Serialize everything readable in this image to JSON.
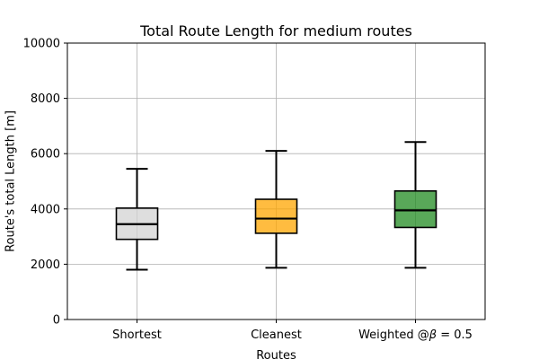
{
  "chart_data": {
    "type": "box",
    "title": "Total Route Length for medium routes",
    "xlabel": "Routes",
    "ylabel": "Route's total Length [m]",
    "ylim": [
      0,
      10000
    ],
    "yticks": [
      0,
      2000,
      4000,
      6000,
      8000,
      10000
    ],
    "ytick_labels": [
      "0",
      "2000",
      "4000",
      "6000",
      "8000",
      "10000"
    ],
    "grid": true,
    "categories": [
      "Shortest",
      "Cleanest",
      "Weighted @β = 0.5"
    ],
    "series": [
      {
        "category": "Shortest",
        "whisker_low": 1800,
        "q1": 2900,
        "median": 3450,
        "q3": 4030,
        "whisker_high": 5450,
        "color": "#d3d3d3"
      },
      {
        "category": "Cleanest",
        "whisker_low": 1870,
        "q1": 3120,
        "median": 3650,
        "q3": 4350,
        "whisker_high": 6100,
        "color": "#ffa500"
      },
      {
        "category": "Weighted @β = 0.5",
        "whisker_low": 1870,
        "q1": 3330,
        "median": 3950,
        "q3": 4650,
        "whisker_high": 6420,
        "color": "#228b22"
      }
    ]
  }
}
